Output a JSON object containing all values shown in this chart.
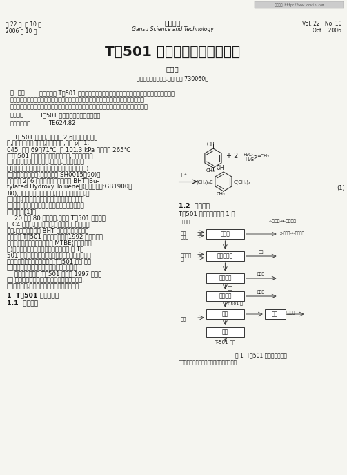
{
  "title": "T－501 抗氧剂生产工艺的改进",
  "author": "郝国良",
  "affiliation": "（兰州石油化工公司,甘肃 兰州 730060）",
  "header_left_line1": "第 22 卷  第 10 期",
  "header_left_line2": "2006 年 10 月",
  "header_center_line1": "甘肃科技",
  "header_center_line2": "Gansu Science and Technology",
  "header_right_line1": "Vol. 22   No. 10",
  "header_right_line2": "Oct.   2006",
  "abstract_label": "摘  要：",
  "abstract_text": "简要介绍了 T－501 抗氧剂，通过调整异丁烯通入速度，烷基化温度，改减压蒸馏冷却水流量控制为温度控制，增大加热面积，改善加热器加热极的循环，解决了装置生产中遇到的几个难题，使装置能力提高，消耗下降。同时还对装置存在的潜力进行了简要剖析。",
  "keywords_label": "关键词：",
  "keywords_text": "T－501 抗氧剂；工艺；改进；消耗",
  "classification_label": "中图分类号：",
  "classification_text": "TE624.82",
  "section1_header": "1  T－501 的生产过程",
  "section11_header": "1.1  合成原理",
  "body_left_col": "    T－501 抗氧剂,化学名称 2,6－二叔丁基对甲酚,白色针状结晶或粉末,无臭、无味,密度 ρ＝ 1.045 ,熔点 69～71℃ ,在 101.3 kPa 下沸点为 265℃。T－501 因其有受阻酚的化学结构,是一种性能稳定的抗氧剂。因其油溶性好,不着色,在各种石油产品(如二次加工汽油、润滑油、变压器油、导热油等)中被广泛用作抗氧剂(产品标准号:SH0015－90)。食品级的 2，6 一二叔丁基对甲酚又名 BHT（Butylated Hydroxy Toluene）(产品标准号:GB1900－80),主要用于减缓油脂酸败,在动物、植物油脂,含油脂食品,化妆品及食品接触的包装用合成材料中被广泛使用。在合成塑料工业中它也是一种使用广泛的抗氧剂[1]。\n    20 世纪 80 年代以前,我国的 T－501 的生产以粗 C4 为原料,产品质量差,生产中的环境污染问题严重,食品工业使用的 BHT 和相当一部分炼油工业使用的 T－501 需从国外进口。1992 年吉林化学工业公司研究院开发成功了以 MTBE(甲基叔丁基醚)为原料裂解制取高纯度异丁烯的技术,为 T－501 使用高质量的原料成为可能。我国相继建成了数套以高纯度异丁烯为原料的 T－501 装置,现已完全满足了国内炼油工业和食品工业的需求。\n    兰州三叶公司的 T－501 装置于 1997 年开始筹建,当年建成投产。经过多年的不断探索和改进,产量明显提高,各项消耗均有了大幅度的降低。",
  "section12_header": "1.2  生产过程",
  "section12_text": "T－501 的生产过程见图 1 。",
  "figure1_caption": "图 1  T－501 生产过程方块图",
  "figure1_subcaption": "经干燥的异丁烯通过加有催化剂的对甲酚液层",
  "bg_color": "#f5f5f0",
  "text_color": "#1a1a1a",
  "box_color": "#333333"
}
